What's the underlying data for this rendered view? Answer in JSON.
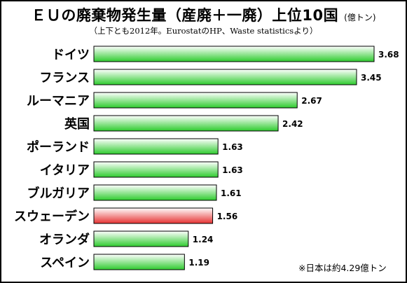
{
  "chart_data": {
    "type": "bar",
    "orientation": "horizontal",
    "title": "ＥＵの廃棄物発生量（産廃＋一廃）上位10国",
    "unit": "(億トン)",
    "subtitle": "（上下とも2012年。EurostatのHP、Waste statisticsより）",
    "categories": [
      "ドイツ",
      "フランス",
      "ルーマニア",
      "英国",
      "ポーランド",
      "イタリア",
      "ブルガリア",
      "スウェーデン",
      "オランダ",
      "スペイン"
    ],
    "values": [
      3.68,
      3.45,
      2.67,
      2.42,
      1.63,
      1.63,
      1.61,
      1.56,
      1.24,
      1.19
    ],
    "value_labels": [
      "3.68",
      "3.45",
      "2.67",
      "2.42",
      "1.63",
      "1.63",
      "1.61",
      "1.56",
      "1.24",
      "1.19"
    ],
    "highlight_category": "スウェーデン",
    "grid": false,
    "legend": "none",
    "footnote": "※日本は約4.29億トン"
  },
  "colors": {
    "bar_top": "#ffffff",
    "bar_bottom": "#2ecb2e",
    "highlight_top": "#ffffff",
    "highlight_bottom": "#e63232",
    "bar_border": "#000000",
    "background": "#ffffff"
  }
}
